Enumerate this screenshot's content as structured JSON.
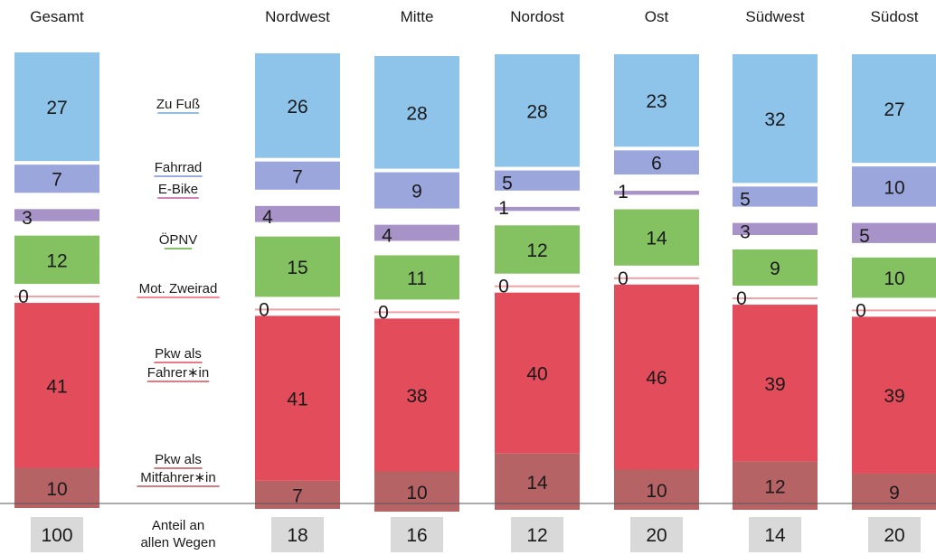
{
  "chart_data": {
    "type": "bar",
    "stacked": true,
    "title": "",
    "xlabel": "",
    "ylabel": "",
    "categories": [
      "Gesamt",
      "Nordwest",
      "Mitte",
      "Nordost",
      "Ost",
      "Südwest",
      "Südost"
    ],
    "series": [
      {
        "name": "Zu Fuß",
        "color": "#8ec3ea",
        "underline": "#6fa9d6",
        "lines": [
          "Zu Fuß"
        ],
        "values": [
          27,
          26,
          28,
          28,
          23,
          32,
          27
        ]
      },
      {
        "name": "Fahrrad",
        "color": "#9aa6dc",
        "underline": "#7f8fd0",
        "lines": [
          "Fahrrad"
        ],
        "values": [
          7,
          7,
          9,
          5,
          6,
          5,
          10
        ]
      },
      {
        "name": "E-Bike",
        "color": "#a893c8",
        "underline": "#c45aa0",
        "lines": [
          "E-Bike"
        ],
        "values": [
          3,
          4,
          4,
          1,
          1,
          3,
          5
        ]
      },
      {
        "name": "ÖPNV",
        "color": "#84c160",
        "underline": "#5fae3c",
        "lines": [
          "ÖPNV"
        ],
        "values": [
          12,
          15,
          11,
          12,
          14,
          9,
          10
        ]
      },
      {
        "name": "Mot. Zweirad",
        "color": "#f2a0a6",
        "underline": "#e8606e",
        "lines": [
          "Mot. Zweirad"
        ],
        "values": [
          0,
          0,
          0,
          0,
          0,
          0,
          0
        ]
      },
      {
        "name": "Pkw als Fahrer*in",
        "color": "#e34c5a",
        "underline": "#e34c5a",
        "lines": [
          "Pkw als",
          "Fahrer∗in"
        ],
        "values": [
          41,
          41,
          38,
          40,
          46,
          39,
          39
        ]
      },
      {
        "name": "Pkw als Mitfahrer*in",
        "color": "#b66366",
        "underline": "#c0505a",
        "lines": [
          "Pkw als",
          "Mitfahrer∗in"
        ],
        "values": [
          10,
          7,
          10,
          14,
          10,
          12,
          9
        ]
      }
    ],
    "share_label_lines": [
      "Anteil an",
      "allen Wegen"
    ],
    "share_values": [
      100,
      18,
      16,
      12,
      20,
      14,
      20
    ],
    "share_box_color": "#d9d9d9"
  }
}
